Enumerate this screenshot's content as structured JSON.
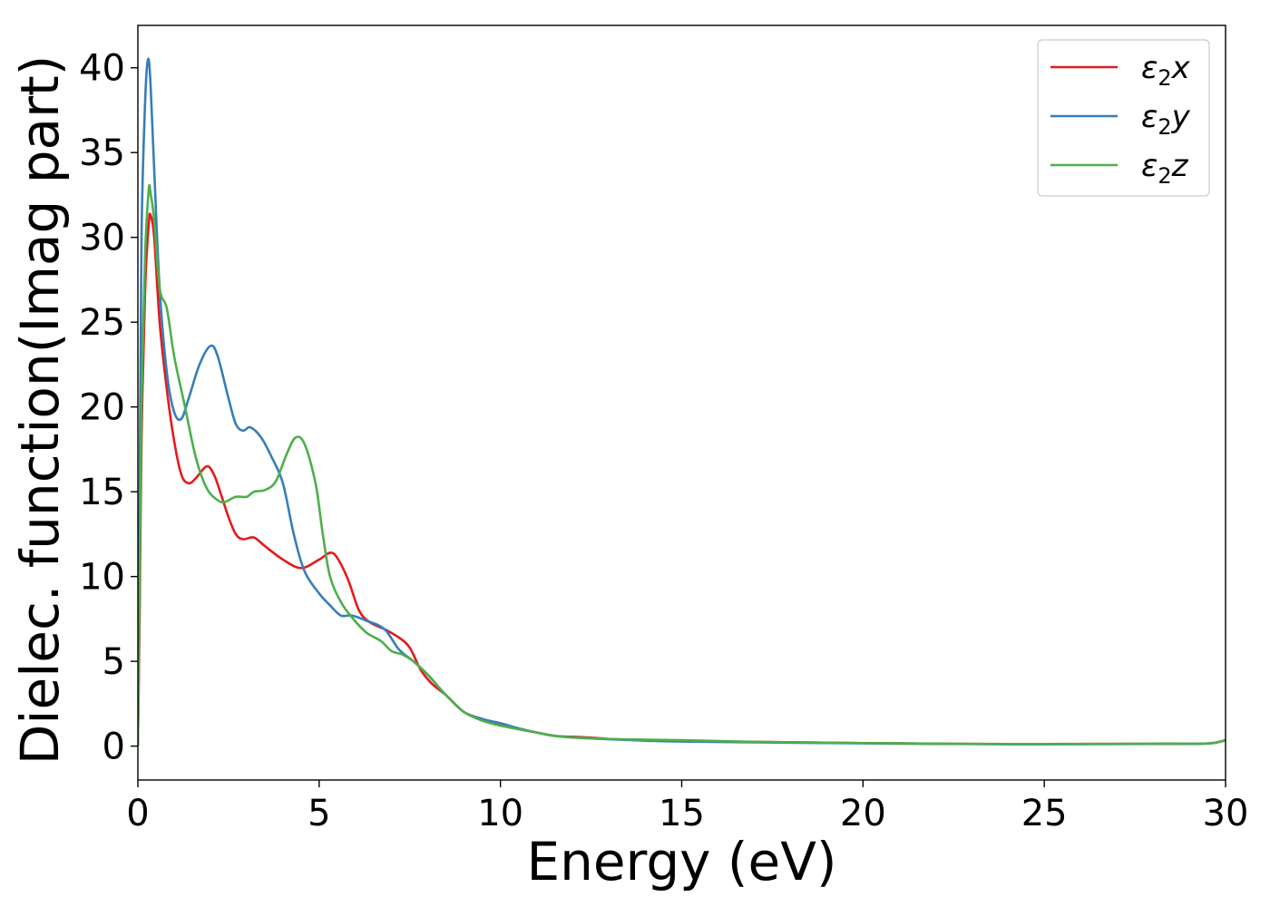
{
  "chart_data": {
    "type": "line",
    "title": "",
    "xlabel": "Energy (eV)",
    "ylabel": "Dielec. function(Imag part)",
    "xlim": [
      0,
      30
    ],
    "ylim": [
      -2,
      42.5
    ],
    "xticks": [
      0,
      5,
      10,
      15,
      20,
      25,
      30
    ],
    "yticks": [
      0,
      5,
      10,
      15,
      20,
      25,
      30,
      35,
      40
    ],
    "grid": false,
    "legend": "top-right",
    "series": [
      {
        "name": "ε₂x",
        "label_base": "ε",
        "label_sub": "2",
        "label_tail": "x",
        "color": "#e41a1c",
        "points": [
          [
            0,
            0
          ],
          [
            0.05,
            8
          ],
          [
            0.1,
            18
          ],
          [
            0.2,
            27
          ],
          [
            0.3,
            30.8
          ],
          [
            0.35,
            31.3
          ],
          [
            0.45,
            30
          ],
          [
            0.6,
            25
          ],
          [
            0.8,
            21
          ],
          [
            1.0,
            18
          ],
          [
            1.2,
            16
          ],
          [
            1.4,
            15.5
          ],
          [
            1.6,
            15.8
          ],
          [
            1.9,
            16.5
          ],
          [
            2.1,
            16
          ],
          [
            2.3,
            14.8
          ],
          [
            2.5,
            13.5
          ],
          [
            2.7,
            12.5
          ],
          [
            2.9,
            12.2
          ],
          [
            3.2,
            12.3
          ],
          [
            3.5,
            11.8
          ],
          [
            4.0,
            11.0
          ],
          [
            4.5,
            10.5
          ],
          [
            5.0,
            11.0
          ],
          [
            5.3,
            11.4
          ],
          [
            5.5,
            11.1
          ],
          [
            5.8,
            9.8
          ],
          [
            6.1,
            8.0
          ],
          [
            6.4,
            7.3
          ],
          [
            6.8,
            6.9
          ],
          [
            7.2,
            6.4
          ],
          [
            7.5,
            5.8
          ],
          [
            7.8,
            4.5
          ],
          [
            8.1,
            3.7
          ],
          [
            8.5,
            3.0
          ],
          [
            9.0,
            2.0
          ],
          [
            9.5,
            1.6
          ],
          [
            10.0,
            1.3
          ],
          [
            10.5,
            1.0
          ],
          [
            11.0,
            0.8
          ],
          [
            11.5,
            0.6
          ],
          [
            12.0,
            0.55
          ],
          [
            12.5,
            0.5
          ],
          [
            13.0,
            0.42
          ],
          [
            14.0,
            0.35
          ],
          [
            15.0,
            0.3
          ],
          [
            17.0,
            0.25
          ],
          [
            20.0,
            0.18
          ],
          [
            23.0,
            0.13
          ],
          [
            25.0,
            0.12
          ],
          [
            28.0,
            0.14
          ],
          [
            29.5,
            0.16
          ],
          [
            30.0,
            0.35
          ]
        ]
      },
      {
        "name": "ε₂y",
        "label_base": "ε",
        "label_sub": "2",
        "label_tail": "y",
        "color": "#377eb8",
        "points": [
          [
            0,
            0
          ],
          [
            0.05,
            15
          ],
          [
            0.1,
            30
          ],
          [
            0.2,
            38
          ],
          [
            0.28,
            40.5
          ],
          [
            0.35,
            39
          ],
          [
            0.45,
            34
          ],
          [
            0.6,
            27
          ],
          [
            0.8,
            22
          ],
          [
            1.0,
            19.7
          ],
          [
            1.2,
            19.3
          ],
          [
            1.4,
            20.5
          ],
          [
            1.7,
            22.5
          ],
          [
            2.0,
            23.6
          ],
          [
            2.2,
            23
          ],
          [
            2.5,
            20.5
          ],
          [
            2.7,
            19
          ],
          [
            2.9,
            18.6
          ],
          [
            3.1,
            18.8
          ],
          [
            3.4,
            18.2
          ],
          [
            3.7,
            17
          ],
          [
            4.0,
            15.5
          ],
          [
            4.3,
            12.5
          ],
          [
            4.6,
            10.3
          ],
          [
            5.0,
            9.0
          ],
          [
            5.3,
            8.3
          ],
          [
            5.6,
            7.7
          ],
          [
            5.9,
            7.7
          ],
          [
            6.3,
            7.4
          ],
          [
            6.8,
            6.9
          ],
          [
            7.2,
            5.7
          ],
          [
            7.6,
            5.0
          ],
          [
            8.0,
            4.2
          ],
          [
            8.5,
            3.0
          ],
          [
            9.0,
            2.0
          ],
          [
            9.5,
            1.6
          ],
          [
            10.0,
            1.35
          ],
          [
            10.5,
            1.05
          ],
          [
            11.0,
            0.8
          ],
          [
            11.5,
            0.6
          ],
          [
            12.0,
            0.52
          ],
          [
            13.0,
            0.4
          ],
          [
            14.0,
            0.32
          ],
          [
            15.0,
            0.27
          ],
          [
            17.0,
            0.22
          ],
          [
            20.0,
            0.16
          ],
          [
            23.0,
            0.12
          ],
          [
            25.0,
            0.11
          ],
          [
            28.0,
            0.13
          ],
          [
            29.5,
            0.15
          ],
          [
            30.0,
            0.35
          ]
        ]
      },
      {
        "name": "ε₂z",
        "label_base": "ε",
        "label_sub": "2",
        "label_tail": "z",
        "color": "#4daf4a",
        "points": [
          [
            0,
            0
          ],
          [
            0.05,
            10
          ],
          [
            0.1,
            20
          ],
          [
            0.2,
            29
          ],
          [
            0.3,
            32.8
          ],
          [
            0.35,
            32.6
          ],
          [
            0.45,
            31
          ],
          [
            0.6,
            27
          ],
          [
            0.8,
            25.8
          ],
          [
            1.0,
            23
          ],
          [
            1.3,
            20
          ],
          [
            1.6,
            17
          ],
          [
            1.9,
            15.2
          ],
          [
            2.2,
            14.5
          ],
          [
            2.4,
            14.4
          ],
          [
            2.7,
            14.7
          ],
          [
            3.0,
            14.7
          ],
          [
            3.2,
            15.0
          ],
          [
            3.5,
            15.1
          ],
          [
            3.8,
            15.6
          ],
          [
            4.1,
            17.2
          ],
          [
            4.35,
            18.2
          ],
          [
            4.6,
            17.8
          ],
          [
            4.9,
            15.5
          ],
          [
            5.1,
            12.5
          ],
          [
            5.3,
            10.0
          ],
          [
            5.6,
            8.5
          ],
          [
            5.9,
            7.6
          ],
          [
            6.3,
            6.7
          ],
          [
            6.7,
            6.2
          ],
          [
            7.0,
            5.6
          ],
          [
            7.3,
            5.4
          ],
          [
            7.6,
            5.0
          ],
          [
            8.0,
            4.2
          ],
          [
            8.5,
            3.0
          ],
          [
            9.0,
            2.0
          ],
          [
            9.5,
            1.5
          ],
          [
            10.0,
            1.2
          ],
          [
            10.5,
            1.0
          ],
          [
            11.0,
            0.8
          ],
          [
            11.5,
            0.6
          ],
          [
            12.0,
            0.5
          ],
          [
            13.0,
            0.42
          ],
          [
            14.0,
            0.38
          ],
          [
            15.0,
            0.35
          ],
          [
            17.0,
            0.25
          ],
          [
            20.0,
            0.18
          ],
          [
            23.0,
            0.13
          ],
          [
            25.0,
            0.12
          ],
          [
            28.0,
            0.14
          ],
          [
            29.5,
            0.16
          ],
          [
            30.0,
            0.35
          ]
        ]
      }
    ]
  }
}
